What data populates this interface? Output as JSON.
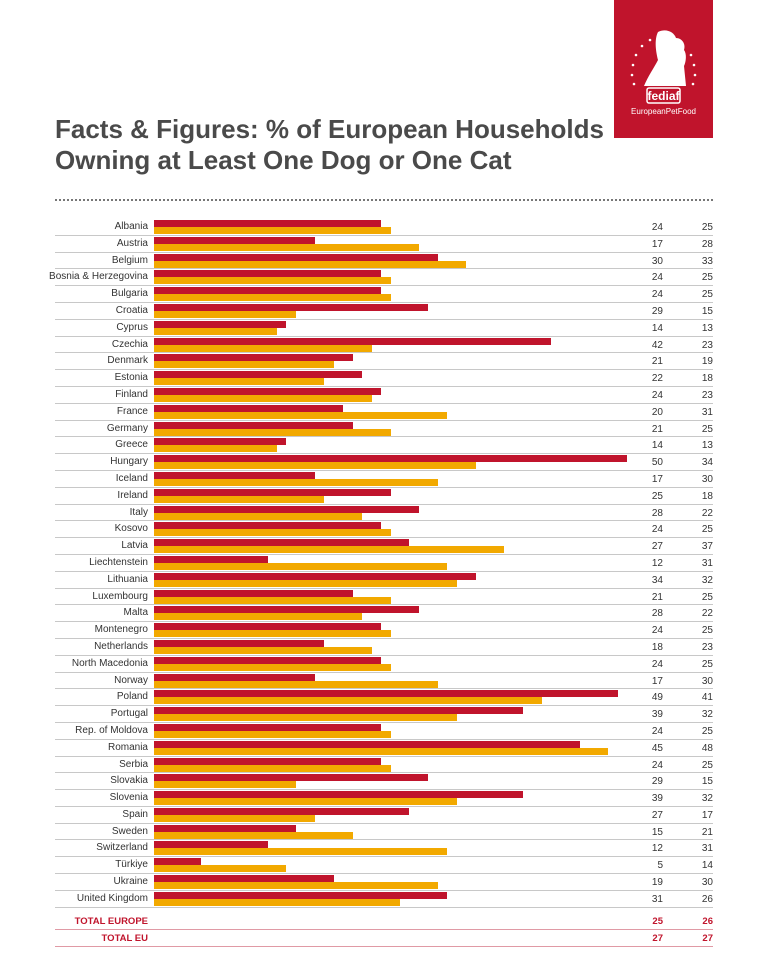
{
  "logo": {
    "brand": "fediaf",
    "tagline": "EuropeanPetFood",
    "color": "#c0142c"
  },
  "title": {
    "line1": "Facts & Figures: % of European Households",
    "line2": "Owning at Least One Dog or One Cat"
  },
  "chart_data": {
    "type": "bar",
    "orientation": "horizontal",
    "title": "Facts & Figures: % of European Households Owning at Least One Dog or One Cat",
    "xlim": [
      0,
      50
    ],
    "grid": false,
    "legend": "none",
    "categories": [
      "Albania",
      "Austria",
      "Belgium",
      "Bosnia & Herzegovina",
      "Bulgaria",
      "Croatia",
      "Cyprus",
      "Czechia",
      "Denmark",
      "Estonia",
      "Finland",
      "France",
      "Germany",
      "Greece",
      "Hungary",
      "Iceland",
      "Ireland",
      "Italy",
      "Kosovo",
      "Latvia",
      "Liechtenstein",
      "Lithuania",
      "Luxembourg",
      "Malta",
      "Montenegro",
      "Netherlands",
      "North Macedonia",
      "Norway",
      "Poland",
      "Portugal",
      "Rep. of Moldova",
      "Romania",
      "Serbia",
      "Slovakia",
      "Slovenia",
      "Spain",
      "Sweden",
      "Switzerland",
      "Türkiye",
      "Ukraine",
      "United Kingdom"
    ],
    "series": [
      {
        "color": "#c0142c",
        "values": [
          24,
          17,
          30,
          24,
          24,
          29,
          14,
          42,
          21,
          22,
          24,
          20,
          21,
          14,
          50,
          17,
          25,
          28,
          24,
          27,
          12,
          34,
          21,
          28,
          24,
          18,
          24,
          17,
          49,
          39,
          24,
          45,
          24,
          29,
          39,
          27,
          15,
          12,
          5,
          19,
          31
        ]
      },
      {
        "color": "#f2a900",
        "values": [
          25,
          28,
          33,
          25,
          25,
          15,
          13,
          23,
          19,
          18,
          23,
          31,
          25,
          13,
          34,
          30,
          18,
          22,
          25,
          37,
          31,
          32,
          25,
          22,
          25,
          23,
          25,
          30,
          41,
          32,
          25,
          48,
          25,
          15,
          32,
          17,
          21,
          31,
          14,
          30,
          26
        ]
      }
    ],
    "totals": [
      {
        "label": "TOTAL EUROPE",
        "values": [
          25,
          26
        ]
      },
      {
        "label": "TOTAL EU",
        "values": [
          27,
          27
        ]
      }
    ]
  }
}
